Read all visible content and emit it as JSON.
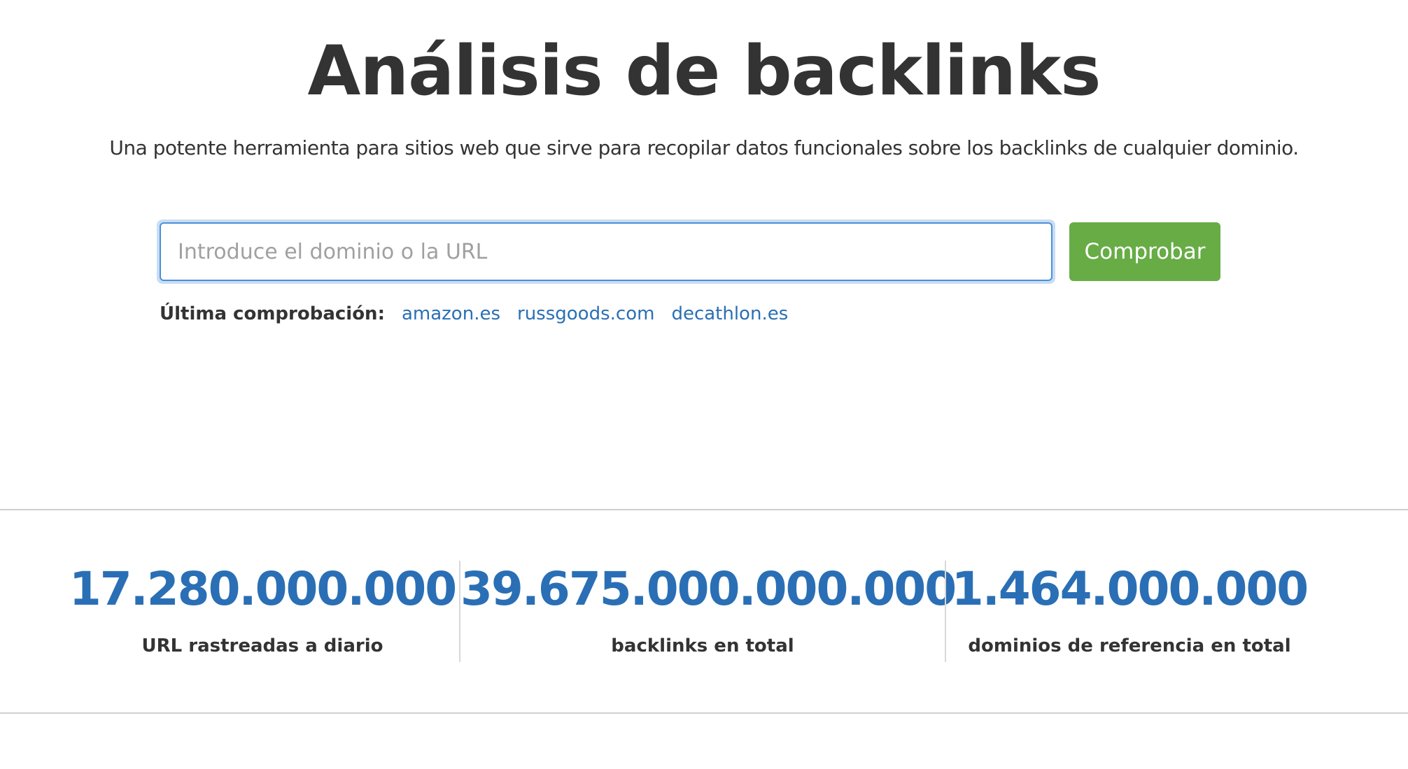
{
  "header": {
    "title": "Análisis de backlinks",
    "subtitle": "Una potente herramienta para sitios web que sirve para recopilar datos funcionales sobre los backlinks de cualquier dominio."
  },
  "search": {
    "placeholder": "Introduce el dominio o la URL",
    "value": "",
    "button_label": "Comprobar"
  },
  "last_check": {
    "label": "Última comprobación:",
    "links": [
      "amazon.es",
      "russgoods.com",
      "decathlon.es"
    ]
  },
  "stats": [
    {
      "value": "17.280.000.000",
      "label": "URL rastreadas a diario"
    },
    {
      "value": "39.675.000.000.000",
      "label": "backlinks en total"
    },
    {
      "value": "1.464.000.000",
      "label": "dominios de referencia en total"
    }
  ],
  "colors": {
    "accent": "#2a6fb5",
    "button": "#67ac45",
    "text": "#333333"
  }
}
